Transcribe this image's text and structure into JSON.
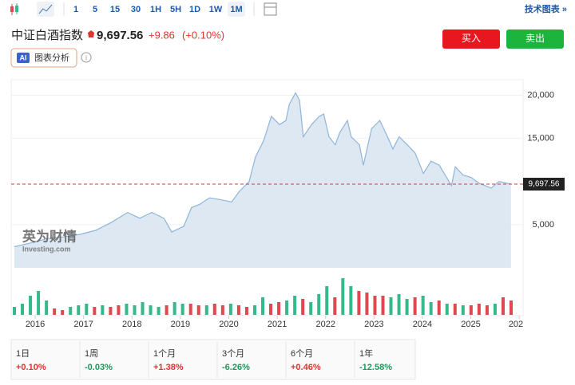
{
  "toolbar": {
    "periods": [
      "1",
      "5",
      "15",
      "30",
      "1H",
      "5H",
      "1D",
      "1W",
      "1M"
    ],
    "active": "1M",
    "tech": "技术图表 »"
  },
  "header": {
    "name": "中证白酒指数",
    "price": "9,697.56",
    "change": "+9.86",
    "change_pct": "(+0.10%)",
    "buy": "买入",
    "sell": "卖出",
    "ai_badge": "AI",
    "ai_label": "图表分析",
    "info": "i"
  },
  "watermark": {
    "cn": "英为财情",
    "en": "Investing.com"
  },
  "chart_data": {
    "type": "area",
    "color": "#8fb5d9",
    "fill": "#dde8f3",
    "x": [
      2015.57,
      2015.93,
      2016.26,
      2016.59,
      2016.92,
      2017.25,
      2017.58,
      2017.91,
      2018.16,
      2018.41,
      2018.66,
      2018.82,
      2019.07,
      2019.23,
      2019.4,
      2019.6,
      2019.81,
      2020.06,
      2020.22,
      2020.42,
      2020.55,
      2020.72,
      2020.88,
      2021.05,
      2021.18,
      2021.25,
      2021.38,
      2021.46,
      2021.54,
      2021.71,
      2021.87,
      2021.96,
      2022.07,
      2022.2,
      2022.29,
      2022.45,
      2022.53,
      2022.7,
      2022.78,
      2022.95,
      2023.12,
      2023.28,
      2023.39,
      2023.52,
      2023.69,
      2023.85,
      2024.02,
      2024.18,
      2024.35,
      2024.6,
      2024.68,
      2024.84,
      2025.01,
      2025.17,
      2025.42,
      2025.58,
      2025.83
    ],
    "series": [
      {
        "values": [
          2450,
          2920,
          3400,
          3580,
          3870,
          4340,
          5280,
          6420,
          5750,
          6420,
          5750,
          4150,
          4810,
          6980,
          7360,
          8110,
          7920,
          7640,
          8870,
          10000,
          12830,
          14720,
          17550,
          16600,
          17080,
          18960,
          20280,
          19430,
          15190,
          16600,
          17550,
          17830,
          15190,
          14250,
          15660,
          17080,
          15190,
          14250,
          11890,
          16130,
          17080,
          15190,
          13770,
          15190,
          14250,
          13300,
          10940,
          12360,
          11890,
          9530,
          11700,
          10750,
          10470,
          9810,
          9250,
          10000,
          9697.56
        ]
      }
    ],
    "xlim": [
      2015.57,
      2026.08
    ],
    "ylim": [
      0,
      21800
    ],
    "xticks": [
      2016,
      2017,
      2018,
      2019,
      2020,
      2021,
      2022,
      2023,
      2024,
      2025,
      {
        "value": 2026,
        "label": "202"
      }
    ],
    "yticks": [
      {
        "value": 5000,
        "label": "5,000"
      },
      {
        "value": 15000,
        "label": "15,000"
      },
      {
        "value": 20000,
        "label": "20,000"
      }
    ],
    "grid": true,
    "price_line": {
      "value": 9697.56,
      "label": "9,697.56",
      "color": "#d9363e"
    },
    "volume": {
      "series": [
        {
          "color": "#35b88a",
          "values": [
            10,
            14,
            24,
            30,
            18,
            null,
            null,
            10,
            12,
            14,
            null,
            12,
            null,
            null,
            14,
            12,
            16,
            12,
            10,
            null,
            16,
            14,
            null,
            null,
            12,
            null,
            null,
            14,
            null,
            null,
            12,
            22,
            null,
            null,
            18,
            24,
            null,
            16,
            26,
            36,
            null,
            46,
            36,
            null,
            null,
            null,
            null,
            22,
            26,
            20,
            null,
            24,
            16,
            null,
            14,
            null,
            12,
            null,
            null,
            null,
            14,
            null,
            null
          ]
        },
        {
          "color": "#e0474f",
          "values": [
            null,
            null,
            null,
            null,
            null,
            8,
            6,
            null,
            null,
            null,
            10,
            null,
            10,
            12,
            null,
            null,
            null,
            null,
            null,
            12,
            null,
            null,
            14,
            12,
            null,
            14,
            12,
            null,
            12,
            10,
            null,
            null,
            14,
            16,
            null,
            null,
            20,
            null,
            null,
            null,
            22,
            null,
            null,
            30,
            28,
            24,
            24,
            null,
            null,
            null,
            22,
            null,
            null,
            18,
            null,
            14,
            null,
            12,
            14,
            12,
            null,
            22,
            18
          ]
        }
      ]
    }
  },
  "performance": [
    {
      "period": "1日",
      "value": "+0.10%"
    },
    {
      "period": "1周",
      "value": "-0.03%"
    },
    {
      "period": "1个月",
      "value": "+1.38%"
    },
    {
      "period": "3个月",
      "value": "-6.26%"
    },
    {
      "period": "6个月",
      "value": "+0.46%"
    },
    {
      "period": "1年",
      "value": "-12.58%"
    }
  ]
}
